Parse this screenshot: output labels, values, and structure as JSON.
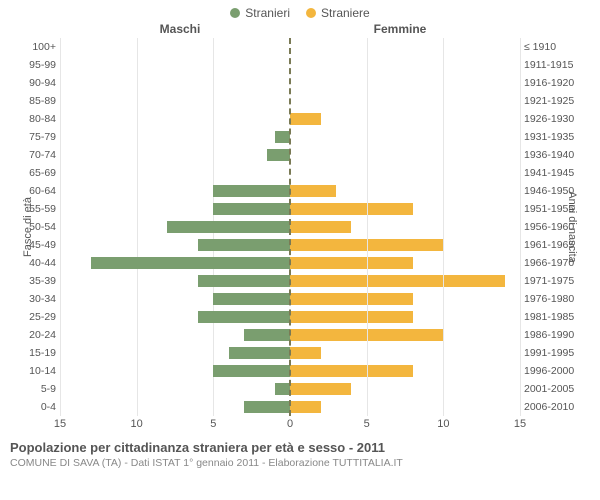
{
  "chart": {
    "type": "population-pyramid",
    "legend": {
      "male": {
        "label": "Stranieri",
        "color": "#7a9e6f"
      },
      "female": {
        "label": "Straniere",
        "color": "#f3b63e"
      }
    },
    "col_headers": {
      "left": "Maschi",
      "right": "Femmine"
    },
    "y_left_label": "Fasce di età",
    "y_right_label": "Anni di nascita",
    "xmax": 15,
    "xticks": [
      15,
      10,
      5,
      0,
      5,
      10,
      15
    ],
    "grid_color": "#e6e6e6",
    "background": "#ffffff",
    "bar_male_color": "#7a9e6f",
    "bar_female_color": "#f3b63e",
    "rows": [
      {
        "age": "100+",
        "birth": "≤ 1910",
        "m": 0,
        "f": 0
      },
      {
        "age": "95-99",
        "birth": "1911-1915",
        "m": 0,
        "f": 0
      },
      {
        "age": "90-94",
        "birth": "1916-1920",
        "m": 0,
        "f": 0
      },
      {
        "age": "85-89",
        "birth": "1921-1925",
        "m": 0,
        "f": 0
      },
      {
        "age": "80-84",
        "birth": "1926-1930",
        "m": 0,
        "f": 2
      },
      {
        "age": "75-79",
        "birth": "1931-1935",
        "m": 1,
        "f": 0
      },
      {
        "age": "70-74",
        "birth": "1936-1940",
        "m": 1.5,
        "f": 0
      },
      {
        "age": "65-69",
        "birth": "1941-1945",
        "m": 0,
        "f": 0
      },
      {
        "age": "60-64",
        "birth": "1946-1950",
        "m": 5,
        "f": 3
      },
      {
        "age": "55-59",
        "birth": "1951-1955",
        "m": 5,
        "f": 8
      },
      {
        "age": "50-54",
        "birth": "1956-1960",
        "m": 8,
        "f": 4
      },
      {
        "age": "45-49",
        "birth": "1961-1965",
        "m": 6,
        "f": 10
      },
      {
        "age": "40-44",
        "birth": "1966-1970",
        "m": 13,
        "f": 8
      },
      {
        "age": "35-39",
        "birth": "1971-1975",
        "m": 6,
        "f": 14
      },
      {
        "age": "30-34",
        "birth": "1976-1980",
        "m": 5,
        "f": 8
      },
      {
        "age": "25-29",
        "birth": "1981-1985",
        "m": 6,
        "f": 8
      },
      {
        "age": "20-24",
        "birth": "1986-1990",
        "m": 3,
        "f": 10
      },
      {
        "age": "15-19",
        "birth": "1991-1995",
        "m": 4,
        "f": 2
      },
      {
        "age": "10-14",
        "birth": "1996-2000",
        "m": 5,
        "f": 8
      },
      {
        "age": "5-9",
        "birth": "2001-2005",
        "m": 1,
        "f": 4
      },
      {
        "age": "0-4",
        "birth": "2006-2010",
        "m": 3,
        "f": 2
      }
    ]
  },
  "footer": {
    "title": "Popolazione per cittadinanza straniera per età e sesso - 2011",
    "subtitle": "COMUNE DI SAVA (TA) - Dati ISTAT 1° gennaio 2011 - Elaborazione TUTTITALIA.IT"
  }
}
